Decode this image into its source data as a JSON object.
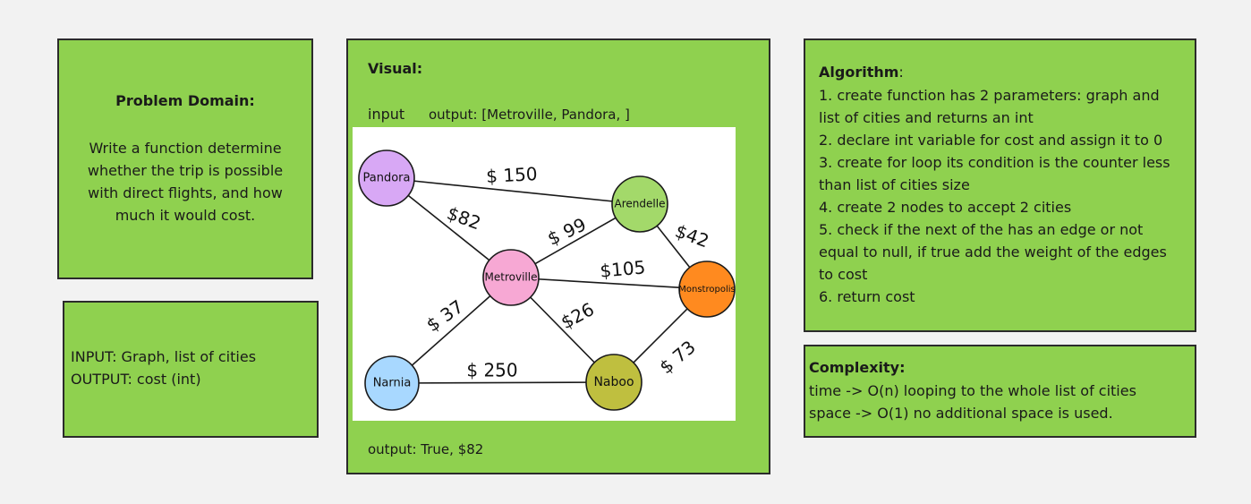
{
  "problem_domain": {
    "title": "Problem Domain:",
    "body": "Write a function determine whether the trip is possible with direct flights, and how much it would cost."
  },
  "io": {
    "input": "INPUT: Graph, list of cities",
    "output": "OUTPUT: cost (int)"
  },
  "visual": {
    "title": "Visual:",
    "input_label": "input",
    "output_label": "output: [Metroville, Pandora, ]",
    "footer_output": "output: True, $82",
    "graph": {
      "nodes": [
        {
          "id": "pandora",
          "label": "Pandora",
          "color": "#d8a8f5"
        },
        {
          "id": "arendelle",
          "label": "Arendelle",
          "color": "#a3d96a"
        },
        {
          "id": "metroville",
          "label": "Metroville",
          "color": "#f7a8d4"
        },
        {
          "id": "monstropolis",
          "label": "Monstropolis",
          "color": "#ff8a1f"
        },
        {
          "id": "narnia",
          "label": "Narnia",
          "color": "#a8d8ff"
        },
        {
          "id": "naboo",
          "label": "Naboo",
          "color": "#bfbf3f"
        }
      ],
      "edges": [
        {
          "from": "pandora",
          "to": "arendelle",
          "label": "$ 150"
        },
        {
          "from": "pandora",
          "to": "metroville",
          "label": "$82"
        },
        {
          "from": "metroville",
          "to": "arendelle",
          "label": "$ 99"
        },
        {
          "from": "arendelle",
          "to": "monstropolis",
          "label": "$42"
        },
        {
          "from": "metroville",
          "to": "monstropolis",
          "label": "$105"
        },
        {
          "from": "metroville",
          "to": "narnia",
          "label": "$ 37"
        },
        {
          "from": "metroville",
          "to": "naboo",
          "label": "$26"
        },
        {
          "from": "monstropolis",
          "to": "naboo",
          "label": "$ 73"
        },
        {
          "from": "narnia",
          "to": "naboo",
          "label": "$ 250"
        }
      ]
    }
  },
  "algorithm": {
    "title": "Algorithm",
    "steps": [
      "1. create function has 2 parameters: graph and list of cities and returns an int",
      "2. declare int variable for cost and assign it to 0",
      "3. create for loop its condition is the counter less than list of cities size",
      "4. create 2 nodes to accept 2 cities",
      "5. check if the next of the has an edge or not equal to null, if true add the weight of the edges to cost",
      "6. return cost"
    ]
  },
  "complexity": {
    "title": "Complexity:",
    "time": "time -> O(n) looping to the whole list of cities",
    "space": "space -> O(1) no additional space is used."
  }
}
